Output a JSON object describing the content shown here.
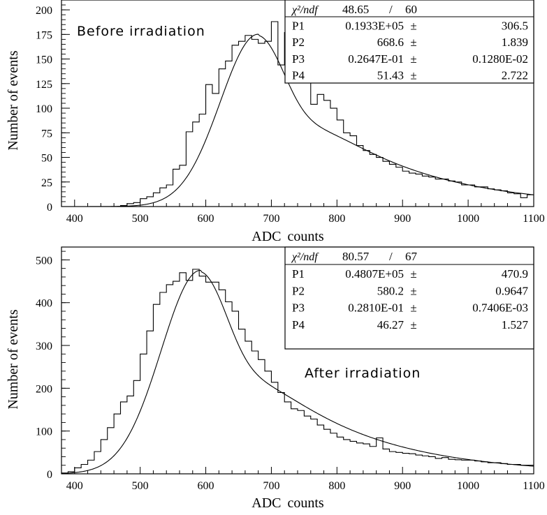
{
  "chart_data": [
    {
      "type": "histogram",
      "annotation": "Before irradiation",
      "xlabel": "ADC counts",
      "ylabel": "Number of events",
      "xlim": [
        380,
        1100
      ],
      "ylim": [
        0,
        210
      ],
      "xticks": [
        400,
        500,
        600,
        700,
        800,
        900,
        1000,
        1100
      ],
      "yticks": [
        0,
        25,
        50,
        75,
        100,
        125,
        150,
        175,
        200
      ],
      "bin_width": 10,
      "histogram": {
        "x": [
          380,
          390,
          400,
          410,
          420,
          430,
          440,
          450,
          460,
          470,
          480,
          490,
          500,
          510,
          520,
          530,
          540,
          550,
          560,
          570,
          580,
          590,
          600,
          610,
          620,
          630,
          640,
          650,
          660,
          670,
          680,
          690,
          700,
          710,
          720,
          730,
          740,
          750,
          760,
          770,
          780,
          790,
          800,
          810,
          820,
          830,
          840,
          850,
          860,
          870,
          880,
          890,
          900,
          910,
          920,
          930,
          940,
          950,
          960,
          970,
          980,
          990,
          1000,
          1010,
          1020,
          1030,
          1040,
          1050,
          1060,
          1070,
          1080,
          1090
        ],
        "y": [
          0,
          0,
          0,
          0,
          0,
          0,
          0,
          0,
          0,
          1,
          3,
          4,
          8,
          10,
          14,
          19,
          22,
          38,
          42,
          76,
          86,
          94,
          124,
          115,
          140,
          148,
          164,
          168,
          174,
          170,
          166,
          168,
          188,
          144,
          177,
          154,
          146,
          132,
          104,
          114,
          108,
          100,
          88,
          75,
          72,
          62,
          57,
          53,
          50,
          46,
          43,
          40,
          36,
          34,
          33,
          31,
          30,
          28,
          28,
          26,
          25,
          22,
          22,
          20,
          20,
          18,
          17,
          16,
          14,
          13,
          9,
          12
        ]
      },
      "fit": {
        "amplitude": 175.2,
        "mpv": 680,
        "sigma_left": 58,
        "tail": 0.0062
      },
      "stats": {
        "chi2_label": "χ²/ndf",
        "chi2_value": "48.65",
        "separator": "/",
        "ndf": "60",
        "params": [
          {
            "name": "P1",
            "value": "0.1933E+05",
            "pm": "±",
            "error": "306.5"
          },
          {
            "name": "P2",
            "value": "668.6",
            "pm": "±",
            "error": "1.839"
          },
          {
            "name": "P3",
            "value": "0.2647E-01",
            "pm": "±",
            "error": "0.1280E-02"
          },
          {
            "name": "P4",
            "value": "51.43",
            "pm": "±",
            "error": "2.722"
          }
        ]
      }
    },
    {
      "type": "histogram",
      "annotation": "After irradiation",
      "xlabel": "ADC counts",
      "ylabel": "Number of events",
      "xlim": [
        380,
        1100
      ],
      "ylim": [
        0,
        530
      ],
      "xticks": [
        400,
        500,
        600,
        700,
        800,
        900,
        1000,
        1100
      ],
      "yticks": [
        0,
        100,
        200,
        300,
        400,
        500
      ],
      "bin_width": 10,
      "histogram": {
        "x": [
          380,
          390,
          400,
          410,
          420,
          430,
          440,
          450,
          460,
          470,
          480,
          490,
          500,
          510,
          520,
          530,
          540,
          550,
          560,
          570,
          580,
          590,
          600,
          610,
          620,
          630,
          640,
          650,
          660,
          670,
          680,
          690,
          700,
          710,
          720,
          730,
          740,
          750,
          760,
          770,
          780,
          790,
          800,
          810,
          820,
          830,
          840,
          850,
          860,
          870,
          880,
          890,
          900,
          910,
          920,
          930,
          940,
          950,
          960,
          970,
          980,
          990,
          1000,
          1010,
          1020,
          1030,
          1040,
          1050,
          1060,
          1070,
          1080,
          1090
        ],
        "y": [
          2,
          5,
          14,
          22,
          32,
          52,
          80,
          108,
          140,
          168,
          182,
          218,
          280,
          334,
          396,
          424,
          442,
          450,
          470,
          452,
          478,
          462,
          448,
          448,
          430,
          402,
          380,
          338,
          310,
          287,
          267,
          240,
          214,
          190,
          168,
          152,
          148,
          135,
          128,
          114,
          104,
          95,
          86,
          80,
          76,
          72,
          70,
          64,
          84,
          58,
          52,
          50,
          48,
          47,
          44,
          42,
          40,
          36,
          38,
          34,
          33,
          32,
          32,
          30,
          28,
          26,
          26,
          24,
          22,
          22,
          20,
          20
        ]
      },
      "fit": {
        "amplitude": 475.6,
        "mpv": 592,
        "sigma_left": 60,
        "tail": 0.0063
      },
      "stats": {
        "chi2_label": "χ²/ndf",
        "chi2_value": "80.57",
        "separator": "/",
        "ndf": "67",
        "params": [
          {
            "name": "P1",
            "value": "0.4807E+05",
            "pm": "±",
            "error": "470.9"
          },
          {
            "name": "P2",
            "value": "580.2",
            "pm": "±",
            "error": "0.9647"
          },
          {
            "name": "P3",
            "value": "0.2810E-01",
            "pm": "±",
            "error": "0.7406E-03"
          },
          {
            "name": "P4",
            "value": "46.27",
            "pm": "±",
            "error": "1.527"
          }
        ]
      }
    }
  ]
}
